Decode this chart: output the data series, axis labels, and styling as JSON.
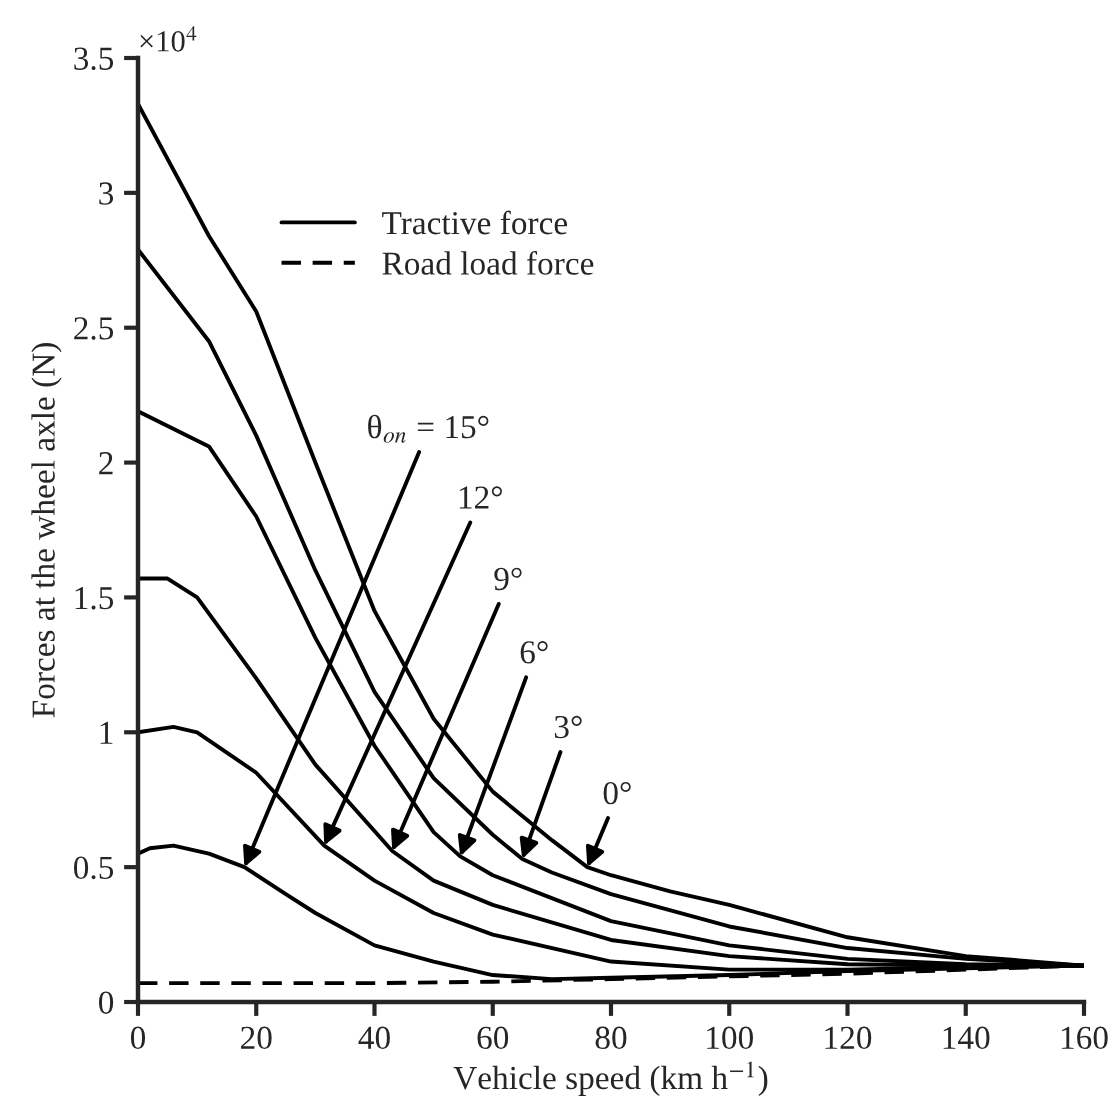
{
  "chart_data": {
    "type": "line",
    "xlabel": "Vehicle speed (km h$^{−1}$)",
    "ylabel": "Forces at the wheel axle (N)",
    "series": [
      {
        "name": "Tractive force",
        "color": "#000000",
        "line_style": "solid",
        "x": [
          0,
          12,
          20,
          30,
          40,
          50,
          60,
          70,
          76,
          80,
          90,
          100,
          120,
          140,
          160
        ],
        "values": [
          3.33,
          2.84,
          2.56,
          2.0,
          1.45,
          1.05,
          0.78,
          0.6,
          0.5,
          0.47,
          0.41,
          0.36,
          0.24,
          0.17,
          0.135
        ]
      },
      {
        "color": "#000000",
        "line_style": "solid",
        "x": [
          0,
          12,
          20,
          30,
          40,
          50,
          60,
          65,
          70,
          80,
          100,
          120,
          140,
          160
        ],
        "values": [
          2.79,
          2.45,
          2.1,
          1.6,
          1.15,
          0.83,
          0.62,
          0.53,
          0.48,
          0.4,
          0.28,
          0.2,
          0.16,
          0.135
        ]
      },
      {
        "color": "#000000",
        "line_style": "solid",
        "x": [
          0,
          12,
          20,
          30,
          40,
          50,
          54.5,
          60,
          80,
          100,
          120,
          140,
          160
        ],
        "values": [
          2.19,
          2.06,
          1.8,
          1.35,
          0.95,
          0.63,
          0.54,
          0.47,
          0.3,
          0.21,
          0.16,
          0.14,
          0.135
        ]
      },
      {
        "color": "#000000",
        "line_style": "solid",
        "x": [
          0,
          5,
          10,
          20,
          30,
          43,
          50,
          60,
          80,
          100,
          120,
          140,
          160
        ],
        "values": [
          1.57,
          1.57,
          1.5,
          1.2,
          0.88,
          0.56,
          0.45,
          0.36,
          0.23,
          0.17,
          0.14,
          0.135,
          0.135
        ]
      },
      {
        "color": "#000000",
        "line_style": "solid",
        "x": [
          0,
          6,
          10,
          20,
          31.5,
          40,
          50,
          60,
          80,
          100,
          120,
          140,
          160
        ],
        "values": [
          1.0,
          1.02,
          1.0,
          0.85,
          0.58,
          0.45,
          0.33,
          0.25,
          0.15,
          0.12,
          0.12,
          0.13,
          0.135
        ]
      },
      {
        "color": "#000000",
        "line_style": "solid",
        "x": [
          0,
          2,
          6,
          12,
          18,
          25,
          30,
          40,
          50,
          60,
          70,
          80,
          100,
          120,
          140,
          160
        ],
        "values": [
          0.55,
          0.57,
          0.58,
          0.55,
          0.5,
          0.4,
          0.33,
          0.21,
          0.15,
          0.1,
          0.085,
          0.09,
          0.1,
          0.115,
          0.125,
          0.135
        ]
      },
      {
        "name": "Road load force",
        "color": "#000000",
        "line_style": "dashed",
        "x": [
          0,
          40,
          60,
          80,
          100,
          120,
          140,
          160
        ],
        "values": [
          0.07,
          0.07,
          0.075,
          0.085,
          0.095,
          0.105,
          0.12,
          0.135
        ]
      }
    ],
    "annotations": [
      "×10$^{4}$",
      {
        "text": "θ$_{on}$ = 15°",
        "x": 18,
        "y": 0.5
      },
      {
        "text": "12°",
        "x": 31.5,
        "y": 0.58
      },
      {
        "text": "9°",
        "x": 43,
        "y": 0.56
      },
      {
        "text": "6°",
        "x": 54.5,
        "y": 0.54
      },
      {
        "text": "3°",
        "x": 65,
        "y": 0.53
      },
      {
        "text": "0°",
        "x": 76,
        "y": 0.5
      }
    ],
    "xlim": [
      0,
      160
    ],
    "xticks": [
      0,
      20,
      40,
      60,
      80,
      100,
      120,
      140,
      160
    ],
    "ylim": [
      0,
      3.5
    ],
    "yticks": [
      0,
      0.5,
      1,
      1.5,
      2,
      2.5,
      3,
      3.5
    ],
    "grid": false,
    "legend": "top left"
  }
}
